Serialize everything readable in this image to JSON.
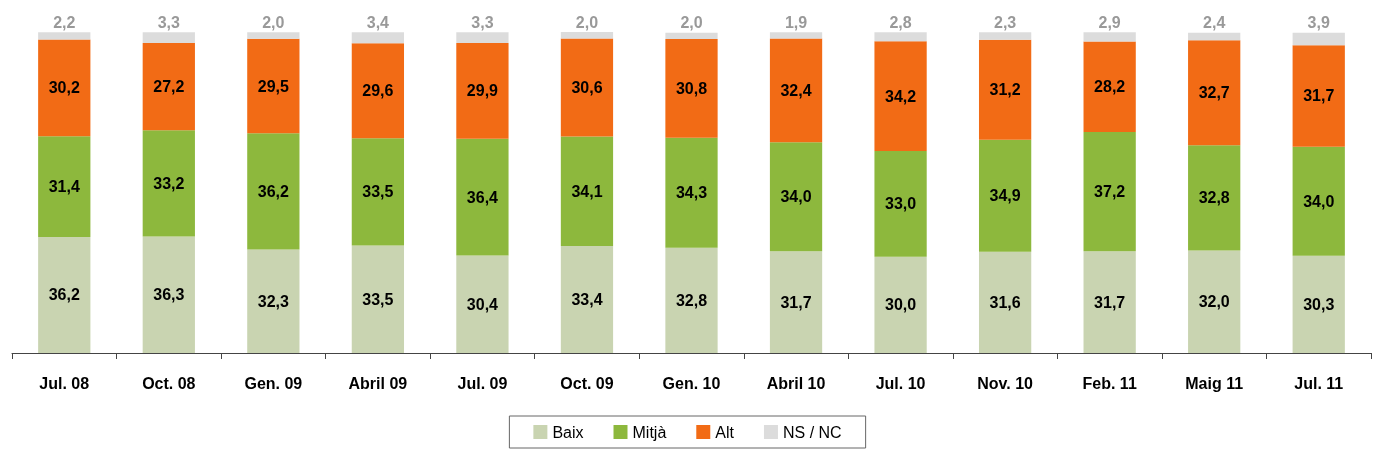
{
  "chart_data": {
    "type": "bar",
    "stacked": true,
    "legend": "bottom",
    "categories": [
      "Jul. 08",
      "Oct. 08",
      "Gen. 09",
      "Abril 09",
      "Jul. 09",
      "Oct. 09",
      "Gen. 10",
      "Abril 10",
      "Jul. 10",
      "Nov. 10",
      "Feb. 11",
      "Maig 11",
      "Jul. 11"
    ],
    "series": [
      {
        "name": "Baix",
        "color": "#c9d4b1",
        "values": [
          36.2,
          36.3,
          32.3,
          33.5,
          30.4,
          33.4,
          32.8,
          31.7,
          30.0,
          31.6,
          31.7,
          32.0,
          30.3
        ],
        "value_labels": [
          "36,2",
          "36,3",
          "32,3",
          "33,5",
          "30,4",
          "33,4",
          "32,8",
          "31,7",
          "30,0",
          "31,6",
          "31,7",
          "32,0",
          "30,3"
        ]
      },
      {
        "name": "Mitjà",
        "color": "#8db83d",
        "values": [
          31.4,
          33.2,
          36.2,
          33.5,
          36.4,
          34.1,
          34.3,
          34.0,
          33.0,
          34.9,
          37.2,
          32.8,
          34.0
        ],
        "value_labels": [
          "31,4",
          "33,2",
          "36,2",
          "33,5",
          "36,4",
          "34,1",
          "34,3",
          "34,0",
          "33,0",
          "34,9",
          "37,2",
          "32,8",
          "34,0"
        ]
      },
      {
        "name": "Alt",
        "color": "#f26b15",
        "values": [
          30.2,
          27.2,
          29.5,
          29.6,
          29.9,
          30.6,
          30.8,
          32.4,
          34.2,
          31.2,
          28.2,
          32.7,
          31.7
        ],
        "value_labels": [
          "30,2",
          "27,2",
          "29,5",
          "29,6",
          "29,9",
          "30,6",
          "30,8",
          "32,4",
          "34,2",
          "31,2",
          "28,2",
          "32,7",
          "31,7"
        ]
      },
      {
        "name": "NS / NC",
        "color": "#dcdcdc",
        "values": [
          2.2,
          3.3,
          2.0,
          3.4,
          3.3,
          2.0,
          2.0,
          1.9,
          2.8,
          2.3,
          2.9,
          2.4,
          3.9
        ],
        "value_labels": [
          "2,2",
          "3,3",
          "2,0",
          "3,4",
          "3,3",
          "2,0",
          "2,0",
          "1,9",
          "2,8",
          "2,3",
          "2,9",
          "2,4",
          "3,9"
        ]
      }
    ]
  }
}
